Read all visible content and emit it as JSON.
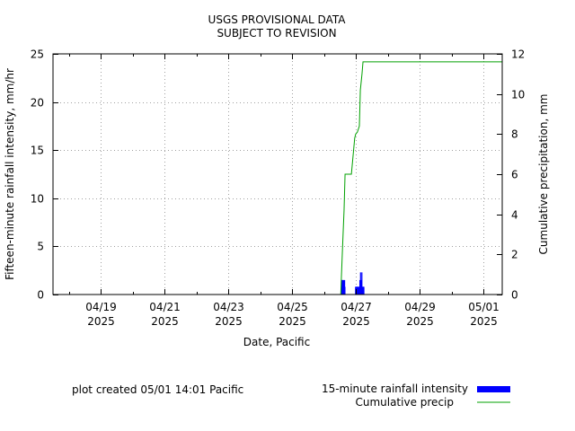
{
  "chart_data": {
    "type": "bar+line",
    "title": [
      "USGS PROVISIONAL DATA",
      "SUBJECT TO REVISION"
    ],
    "xlabel": "Date, Pacific",
    "ylabel_left": "Fifteen-minute rainfall intensity, mm/hr",
    "ylabel_right": "Cumulative precipitation, mm",
    "footer": "plot created 05/01 14:01 Pacific",
    "x_range_days": [
      "04/17 12:00",
      "05/01 14:00"
    ],
    "ylim_left": [
      0,
      25
    ],
    "ylim_right": [
      0,
      12
    ],
    "y_ticks_left": [
      0,
      5,
      10,
      15,
      20,
      25
    ],
    "y_ticks_right": [
      0,
      2,
      4,
      6,
      8,
      10,
      12
    ],
    "x_ticks": [
      {
        "day": "04/19",
        "year": "2025"
      },
      {
        "day": "04/21",
        "year": "2025"
      },
      {
        "day": "04/23",
        "year": "2025"
      },
      {
        "day": "04/25",
        "year": "2025"
      },
      {
        "day": "04/27",
        "year": "2025"
      },
      {
        "day": "04/29",
        "year": "2025"
      },
      {
        "day": "05/01",
        "year": "2025"
      }
    ],
    "grid": true,
    "legend_position": "bottom-right",
    "series": [
      {
        "name": "15-minute rainfall intensity",
        "axis": "left",
        "style": "bar",
        "color": "#0000ff",
        "points": [
          [
            "04/26 12:45",
            1.5
          ],
          [
            "04/26 13:00",
            1.5
          ],
          [
            "04/26 13:15",
            1.5
          ],
          [
            "04/26 13:30",
            1.5
          ],
          [
            "04/26 13:45",
            0.8
          ],
          [
            "04/26 14:00",
            1.5
          ],
          [
            "04/26 14:15",
            0.8
          ],
          [
            "04/26 14:30",
            1.5
          ],
          [
            "04/26 14:45",
            0.8
          ],
          [
            "04/26 15:00",
            1.5
          ],
          [
            "04/26 15:15",
            0.8
          ],
          [
            "04/26 23:15",
            0.8
          ],
          [
            "04/26 23:30",
            0.8
          ],
          [
            "04/26 23:45",
            0.8
          ],
          [
            "04/27 00:00",
            0.8
          ],
          [
            "04/27 00:15",
            0.8
          ],
          [
            "04/27 00:30",
            0.8
          ],
          [
            "04/27 00:45",
            0.8
          ],
          [
            "04/27 01:00",
            0.8
          ],
          [
            "04/27 01:15",
            0.8
          ],
          [
            "04/27 01:30",
            0.8
          ],
          [
            "04/27 01:45",
            0.8
          ],
          [
            "04/27 02:00",
            0.8
          ],
          [
            "04/27 02:15",
            0.8
          ],
          [
            "04/27 02:30",
            1.5
          ],
          [
            "04/27 02:45",
            0.8
          ],
          [
            "04/27 03:00",
            2.3
          ],
          [
            "04/27 03:15",
            0.8
          ],
          [
            "04/27 03:30",
            1.5
          ],
          [
            "04/27 03:45",
            0.8
          ],
          [
            "04/27 04:00",
            2.3
          ],
          [
            "04/27 04:15",
            0.8
          ],
          [
            "04/27 04:30",
            0.8
          ],
          [
            "04/27 04:45",
            0.8
          ],
          [
            "04/27 05:00",
            0.8
          ],
          [
            "04/27 05:15",
            0.8
          ],
          [
            "04/27 05:30",
            0.8
          ]
        ]
      },
      {
        "name": "Cumulative precip",
        "axis": "right",
        "style": "step-line",
        "color": "#00a000",
        "points": [
          [
            "04/17 12:00",
            0
          ],
          [
            "04/26 12:30",
            0
          ],
          [
            "04/26 13:00",
            0.9
          ],
          [
            "04/26 14:00",
            2.6
          ],
          [
            "04/26 15:00",
            4.2
          ],
          [
            "04/26 15:45",
            6.0
          ],
          [
            "04/26 20:30",
            6.0
          ],
          [
            "04/26 23:00",
            7.8
          ],
          [
            "04/26 23:45",
            8.0
          ],
          [
            "04/27 01:00",
            8.1
          ],
          [
            "04/27 02:30",
            8.4
          ],
          [
            "04/27 03:15",
            10.2
          ],
          [
            "04/27 04:30",
            11.0
          ],
          [
            "04/27 05:15",
            11.6
          ],
          [
            "05/01 14:00",
            11.6
          ]
        ]
      }
    ]
  }
}
